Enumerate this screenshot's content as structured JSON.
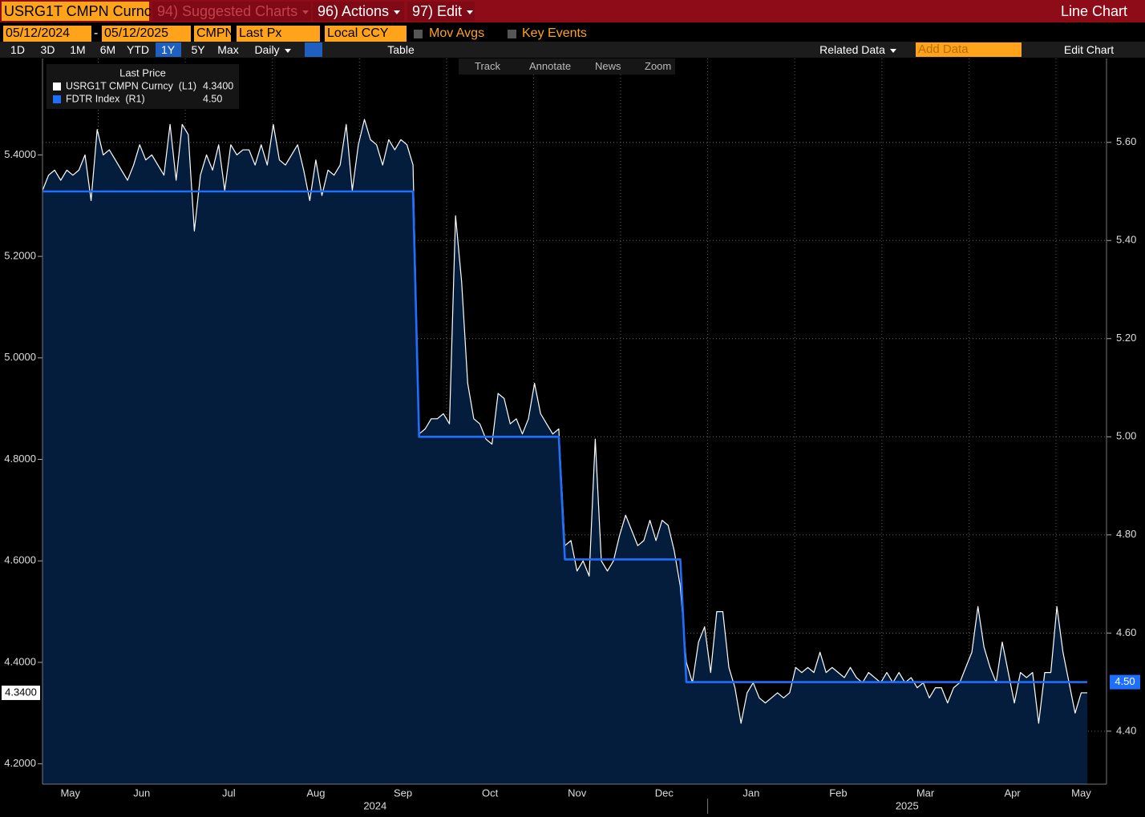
{
  "toolbar": {
    "security": "USRG1T CMPN Curnc",
    "menus": [
      "94) Suggested Charts",
      "96) Actions",
      "97) Edit"
    ],
    "view": "Line Chart",
    "start_date": "05/12/2024",
    "date_sep": "-",
    "end_date": "05/12/2025",
    "source": "CMPN",
    "field": "Last Px",
    "currency": "Local CCY",
    "toggles": [
      "Mov Avgs",
      "Key Events"
    ],
    "periods": [
      "1D",
      "3D",
      "1M",
      "6M",
      "YTD",
      "1Y",
      "5Y",
      "Max"
    ],
    "selected_period": 5,
    "frequency": "Daily",
    "table": "Table",
    "related": "Related Data",
    "add_data": "Add Data",
    "edit_chart": "Edit Chart",
    "tools": [
      "Track",
      "Annotate",
      "News",
      "Zoom"
    ]
  },
  "chart_data": {
    "type": "line",
    "legend_title": "Last Price",
    "x_labels": [
      "May",
      "Jun",
      "Jul",
      "Aug",
      "Sep",
      "Oct",
      "Nov",
      "Dec",
      "Jan",
      "Feb",
      "Mar",
      "Apr",
      "May"
    ],
    "years": [
      "2024",
      "2025"
    ],
    "ylim": [
      4.16,
      5.59
    ],
    "yticks": [
      {
        "value": 4.2,
        "label": "4.2000"
      },
      {
        "value": 4.4,
        "label": "4.4000"
      },
      {
        "value": 4.6,
        "label": "4.6000"
      },
      {
        "value": 4.8,
        "label": "4.8000"
      },
      {
        "value": 5.0,
        "label": "5.0000"
      },
      {
        "value": 5.2,
        "label": "5.2000"
      },
      {
        "value": 5.4,
        "label": "5.4000"
      }
    ],
    "y2lim": [
      4.292,
      5.771
    ],
    "y2ticks": [
      {
        "value": 4.4,
        "label": "4.40"
      },
      {
        "value": 4.6,
        "label": "4.60"
      },
      {
        "value": 4.8,
        "label": "4.80"
      },
      {
        "value": 5.0,
        "label": "5.00"
      },
      {
        "value": 5.2,
        "label": "5.20"
      },
      {
        "value": 5.4,
        "label": "5.40"
      },
      {
        "value": 5.6,
        "label": "5.60"
      }
    ],
    "grid": true,
    "series": [
      {
        "name": "USRG1T CMPN Curncy  (L1)",
        "color": "#ffffff",
        "last_label": "4.3400",
        "values": [
          5.33,
          5.36,
          5.37,
          5.35,
          5.37,
          5.36,
          5.37,
          5.4,
          5.31,
          5.45,
          5.4,
          5.41,
          5.39,
          5.37,
          5.35,
          5.38,
          5.42,
          5.39,
          5.4,
          5.38,
          5.36,
          5.46,
          5.35,
          5.46,
          5.44,
          5.25,
          5.36,
          5.4,
          5.37,
          5.42,
          5.33,
          5.42,
          5.4,
          5.41,
          5.41,
          5.38,
          5.42,
          5.38,
          5.46,
          5.39,
          5.38,
          5.4,
          5.42,
          5.37,
          5.31,
          5.39,
          5.32,
          5.37,
          5.36,
          5.38,
          5.46,
          5.33,
          5.42,
          5.47,
          5.43,
          5.42,
          5.38,
          5.43,
          5.41,
          5.43,
          5.42,
          5.38,
          4.85,
          4.86,
          4.88,
          4.88,
          4.89,
          4.87,
          5.28,
          5.15,
          4.95,
          4.88,
          4.87,
          4.84,
          4.83,
          4.93,
          4.92,
          4.87,
          4.88,
          4.85,
          4.88,
          4.95,
          4.89,
          4.87,
          4.85,
          4.86,
          4.63,
          4.64,
          4.58,
          4.6,
          4.57,
          4.84,
          4.6,
          4.58,
          4.6,
          4.65,
          4.69,
          4.66,
          4.63,
          4.64,
          4.68,
          4.64,
          4.68,
          4.67,
          4.62,
          4.55,
          4.4,
          4.36,
          4.44,
          4.47,
          4.38,
          4.5,
          4.5,
          4.39,
          4.35,
          4.28,
          4.34,
          4.36,
          4.33,
          4.32,
          4.33,
          4.34,
          4.33,
          4.34,
          4.39,
          4.38,
          4.39,
          4.38,
          4.42,
          4.38,
          4.39,
          4.38,
          4.37,
          4.39,
          4.37,
          4.36,
          4.38,
          4.37,
          4.36,
          4.38,
          4.36,
          4.38,
          4.36,
          4.37,
          4.35,
          4.36,
          4.33,
          4.35,
          4.35,
          4.32,
          4.35,
          4.36,
          4.39,
          4.42,
          4.51,
          4.43,
          4.39,
          4.36,
          4.44,
          4.38,
          4.32,
          4.38,
          4.37,
          4.38,
          4.28,
          4.38,
          4.38,
          4.51,
          4.42,
          4.36,
          4.3,
          4.34,
          4.34
        ]
      },
      {
        "name": "FDTR Index  (R1)",
        "color": "#1f6fff",
        "axis": "y2",
        "last_label": "4.50",
        "values": [
          5.5,
          5.5,
          5.5,
          5.5,
          5.5,
          5.5,
          5.5,
          5.5,
          5.5,
          5.5,
          5.5,
          5.5,
          5.5,
          5.5,
          5.5,
          5.5,
          5.5,
          5.5,
          5.5,
          5.5,
          5.5,
          5.5,
          5.5,
          5.5,
          5.5,
          5.5,
          5.5,
          5.5,
          5.5,
          5.5,
          5.5,
          5.5,
          5.5,
          5.5,
          5.5,
          5.5,
          5.5,
          5.5,
          5.5,
          5.5,
          5.5,
          5.5,
          5.5,
          5.5,
          5.5,
          5.5,
          5.5,
          5.5,
          5.5,
          5.5,
          5.5,
          5.5,
          5.5,
          5.5,
          5.5,
          5.5,
          5.5,
          5.5,
          5.5,
          5.5,
          5.5,
          5.5,
          5.0,
          5.0,
          5.0,
          5.0,
          5.0,
          5.0,
          5.0,
          5.0,
          5.0,
          5.0,
          5.0,
          5.0,
          5.0,
          5.0,
          5.0,
          5.0,
          5.0,
          5.0,
          5.0,
          5.0,
          5.0,
          5.0,
          5.0,
          5.0,
          4.75,
          4.75,
          4.75,
          4.75,
          4.75,
          4.75,
          4.75,
          4.75,
          4.75,
          4.75,
          4.75,
          4.75,
          4.75,
          4.75,
          4.75,
          4.75,
          4.75,
          4.75,
          4.75,
          4.75,
          4.5,
          4.5,
          4.5,
          4.5,
          4.5,
          4.5,
          4.5,
          4.5,
          4.5,
          4.5,
          4.5,
          4.5,
          4.5,
          4.5,
          4.5,
          4.5,
          4.5,
          4.5,
          4.5,
          4.5,
          4.5,
          4.5,
          4.5,
          4.5,
          4.5,
          4.5,
          4.5,
          4.5,
          4.5,
          4.5,
          4.5,
          4.5,
          4.5,
          4.5,
          4.5,
          4.5,
          4.5,
          4.5,
          4.5,
          4.5,
          4.5,
          4.5,
          4.5,
          4.5,
          4.5,
          4.5,
          4.5,
          4.5,
          4.5,
          4.5,
          4.5,
          4.5,
          4.5,
          4.5,
          4.5,
          4.5,
          4.5,
          4.5,
          4.5,
          4.5,
          4.5,
          4.5,
          4.5,
          4.5,
          4.5,
          4.5,
          4.5
        ]
      }
    ]
  }
}
